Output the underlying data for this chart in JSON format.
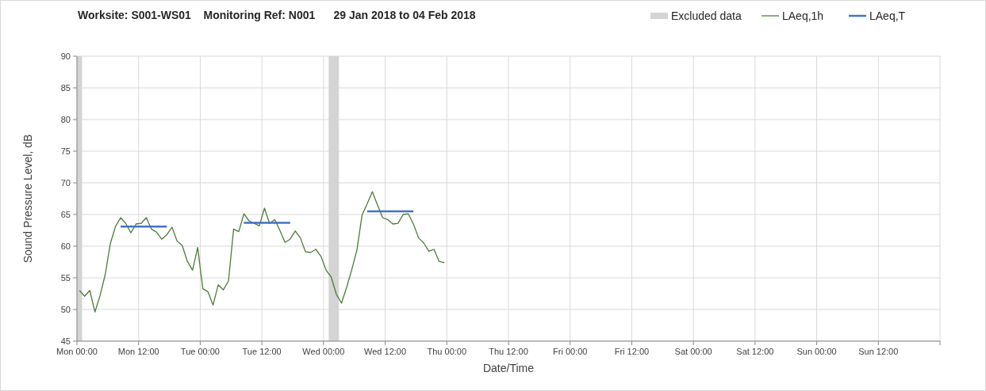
{
  "chart_data": {
    "type": "line",
    "title": "Worksite: S001-WS01    Monitoring Ref: N001      29 Jan 2018 to 04 Feb 2018",
    "xlabel": "Date/Time",
    "ylabel": "Sound Pressure Level, dB",
    "xlim": [
      "2018-01-29T00:00",
      "2018-02-05T00:00"
    ],
    "xticks": [
      {
        "value": "2018-01-29T00:00",
        "label": "Mon 00:00"
      },
      {
        "value": "2018-01-29T12:00",
        "label": "Mon 12:00"
      },
      {
        "value": "2018-01-30T00:00",
        "label": "Tue 00:00"
      },
      {
        "value": "2018-01-30T12:00",
        "label": "Tue 12:00"
      },
      {
        "value": "2018-01-31T00:00",
        "label": "Wed 00:00"
      },
      {
        "value": "2018-01-31T12:00",
        "label": "Wed 12:00"
      },
      {
        "value": "2018-02-01T00:00",
        "label": "Thu 00:00"
      },
      {
        "value": "2018-02-01T12:00",
        "label": "Thu 12:00"
      },
      {
        "value": "2018-02-02T00:00",
        "label": "Fri 00:00"
      },
      {
        "value": "2018-02-02T12:00",
        "label": "Fri 12:00"
      },
      {
        "value": "2018-02-03T00:00",
        "label": "Sat 00:00"
      },
      {
        "value": "2018-02-03T12:00",
        "label": "Sat 12:00"
      },
      {
        "value": "2018-02-04T00:00",
        "label": "Sun 00:00"
      },
      {
        "value": "2018-02-04T12:00",
        "label": "Sun 12:00"
      },
      {
        "value": "2018-02-05T00:00",
        "label": null
      }
    ],
    "ylim": [
      45,
      90
    ],
    "yticks": [
      45,
      50,
      55,
      60,
      65,
      70,
      75,
      80,
      85,
      90
    ],
    "grid": true,
    "legend": "top right",
    "bands": [
      {
        "axis": "x",
        "from": "2018-01-29T00:00",
        "to": "2018-01-29T01:00",
        "label": "Excluded data",
        "color": "#d4d4d4"
      },
      {
        "axis": "x",
        "from": "2018-01-31T01:00",
        "to": "2018-01-31T03:00",
        "color": "#d4d4d4"
      }
    ],
    "series": [
      {
        "name": "LAeq,1h",
        "color": "#4f7a3a",
        "x": [
          "2018-01-29T00:30",
          "2018-01-29T01:30",
          "2018-01-29T02:30",
          "2018-01-29T03:30",
          "2018-01-29T04:30",
          "2018-01-29T05:30",
          "2018-01-29T06:30",
          "2018-01-29T07:30",
          "2018-01-29T08:30",
          "2018-01-29T09:30",
          "2018-01-29T10:30",
          "2018-01-29T11:30",
          "2018-01-29T12:30",
          "2018-01-29T13:30",
          "2018-01-29T14:30",
          "2018-01-29T15:30",
          "2018-01-29T16:30",
          "2018-01-29T17:30",
          "2018-01-29T18:30",
          "2018-01-29T19:30",
          "2018-01-29T20:30",
          "2018-01-29T21:30",
          "2018-01-29T22:30",
          "2018-01-29T23:30",
          "2018-01-30T00:30",
          "2018-01-30T01:30",
          "2018-01-30T02:30",
          "2018-01-30T03:30",
          "2018-01-30T04:30",
          "2018-01-30T05:30",
          "2018-01-30T06:30",
          "2018-01-30T07:30",
          "2018-01-30T08:30",
          "2018-01-30T09:30",
          "2018-01-30T10:30",
          "2018-01-30T11:30",
          "2018-01-30T12:30",
          "2018-01-30T13:30",
          "2018-01-30T14:30",
          "2018-01-30T15:30",
          "2018-01-30T16:30",
          "2018-01-30T17:30",
          "2018-01-30T18:30",
          "2018-01-30T19:30",
          "2018-01-30T20:30",
          "2018-01-30T21:30",
          "2018-01-30T22:30",
          "2018-01-30T23:30",
          "2018-01-31T00:30",
          "2018-01-31T01:30",
          "2018-01-31T02:30",
          "2018-01-31T03:30",
          "2018-01-31T04:30",
          "2018-01-31T05:30",
          "2018-01-31T06:30",
          "2018-01-31T07:30",
          "2018-01-31T08:30",
          "2018-01-31T09:30",
          "2018-01-31T10:30",
          "2018-01-31T11:30",
          "2018-01-31T12:30",
          "2018-01-31T13:30",
          "2018-01-31T14:30",
          "2018-01-31T15:30",
          "2018-01-31T16:30",
          "2018-01-31T17:30",
          "2018-01-31T18:30",
          "2018-01-31T19:30",
          "2018-01-31T20:30",
          "2018-01-31T21:30",
          "2018-01-31T22:30",
          "2018-01-31T23:30"
        ],
        "values": [
          53.0,
          52.1,
          53.0,
          49.6,
          52.2,
          55.5,
          60.4,
          63.1,
          64.5,
          63.6,
          62.1,
          63.5,
          63.6,
          64.5,
          62.7,
          62.2,
          61.1,
          61.8,
          63.0,
          60.8,
          60.1,
          57.6,
          56.2,
          59.8,
          53.3,
          52.8,
          50.7,
          53.9,
          53.1,
          54.5,
          62.7,
          62.3,
          65.1,
          64.0,
          63.6,
          63.2,
          66.0,
          63.6,
          64.2,
          62.5,
          60.6,
          61.1,
          62.4,
          61.3,
          59.1,
          59.0,
          59.5,
          58.4,
          56.2,
          55.1,
          52.4,
          51.0,
          53.5,
          56.3,
          59.4,
          64.9,
          66.7,
          68.6,
          66.5,
          64.5,
          64.2,
          63.5,
          63.6,
          65.0,
          65.1,
          63.5,
          61.3,
          60.5,
          59.2,
          59.5,
          57.6,
          57.4
        ]
      },
      {
        "name": "LAeq,T",
        "color": "#4472c4",
        "x": [
          "2018-01-29T08:30",
          "2018-01-29T17:30",
          "2018-01-29T17:36",
          "2018-01-30T08:30",
          "2018-01-30T17:30",
          "2018-01-30T17:36",
          "2018-01-31T08:30",
          "2018-01-31T17:30"
        ],
        "values": [
          63.1,
          63.1,
          null,
          63.7,
          63.7,
          null,
          65.5,
          65.5
        ]
      }
    ]
  }
}
